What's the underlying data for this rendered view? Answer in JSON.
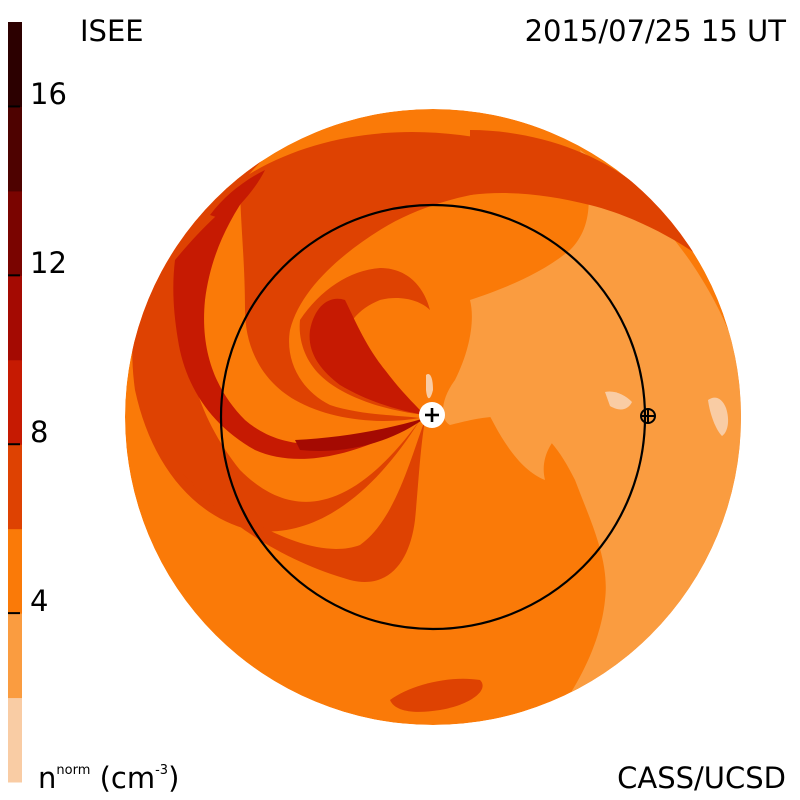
{
  "header": {
    "source": "ISEE",
    "timestamp": "2015/07/25 15 UT"
  },
  "footer": {
    "credit": "CASS/UCSD",
    "unit": {
      "base": "n",
      "superscript": "norm",
      "paren_open": " (cm",
      "exp": "-3",
      "paren_close": ")"
    }
  },
  "colorbar": {
    "ticks": [
      {
        "value": 16,
        "label": "16"
      },
      {
        "value": 12,
        "label": "12"
      },
      {
        "value": 8,
        "label": "8"
      },
      {
        "value": 4,
        "label": "4"
      }
    ],
    "range": [
      0,
      18
    ],
    "bands": [
      {
        "from": 0,
        "to": 2,
        "color": "#f9cca4"
      },
      {
        "from": 2,
        "to": 4,
        "color": "#fa9c40"
      },
      {
        "from": 4,
        "to": 6,
        "color": "#fa7a08"
      },
      {
        "from": 6,
        "to": 8,
        "color": "#de4202"
      },
      {
        "from": 8,
        "to": 10,
        "color": "#c61a02"
      },
      {
        "from": 10,
        "to": 12,
        "color": "#a40a02"
      },
      {
        "from": 12,
        "to": 14,
        "color": "#7a0400"
      },
      {
        "from": 14,
        "to": 16,
        "color": "#4e0200"
      },
      {
        "from": 16,
        "to": 18,
        "color": "#2c0000"
      }
    ]
  },
  "colors": {
    "base_orange": "#fa7a08",
    "light_orange": "#fa9c40",
    "pale": "#f9cca4",
    "red_orange": "#de4202",
    "red": "#c61a02",
    "dark_red": "#a40a02"
  },
  "markers": {
    "sun": "plus-icon",
    "earth": "circled-plus-icon"
  }
}
